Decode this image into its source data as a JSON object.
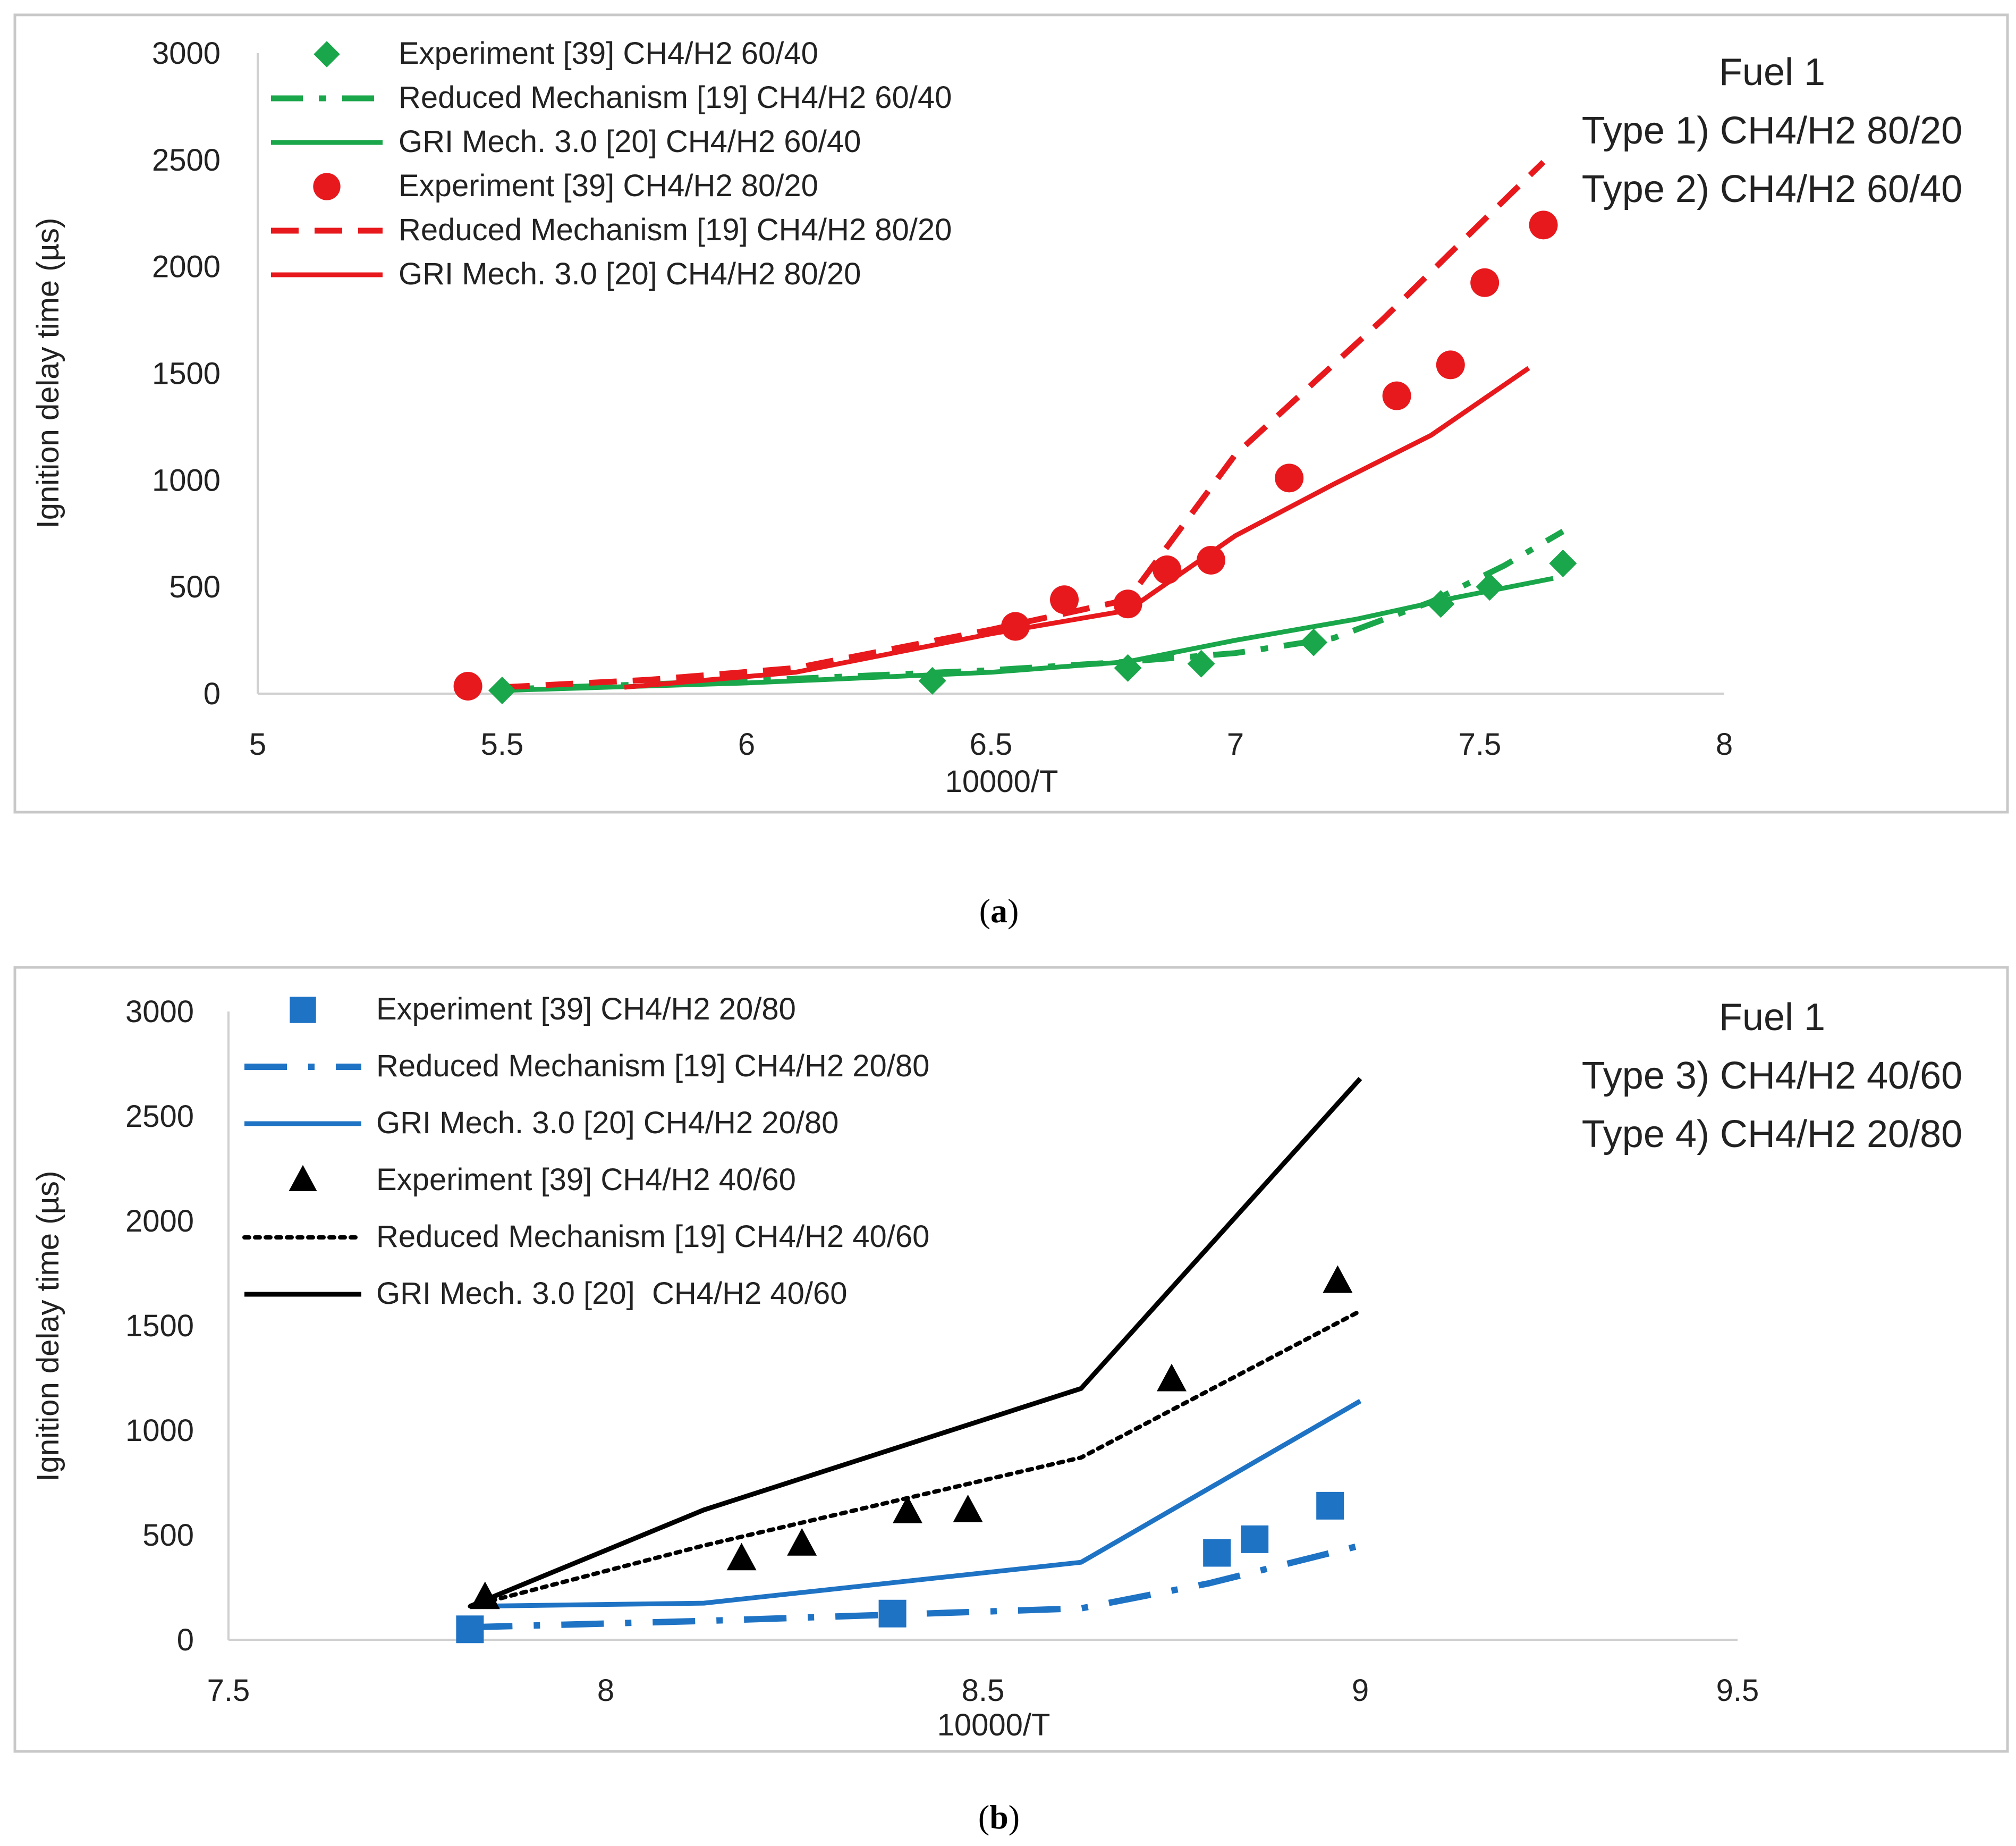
{
  "chart_data": [
    {
      "type": "scatter",
      "panel_label": "a",
      "xlabel": "10000/T",
      "ylabel": "Ignition delay time (µs)",
      "xlim": [
        5,
        8
      ],
      "ylim": [
        0,
        3000
      ],
      "xticks": [
        5,
        5.5,
        6,
        6.5,
        7,
        7.5,
        8
      ],
      "yticks": [
        0,
        500,
        1000,
        1500,
        2000,
        2500,
        3000
      ],
      "xtick_labels": [
        "5",
        "5.5",
        "6",
        "6.5",
        "7",
        "7.5",
        "8"
      ],
      "ytick_labels": [
        "0",
        "500",
        "1000",
        "1500",
        "2000",
        "2500",
        "3000"
      ],
      "annotation": [
        "Fuel 1",
        "Type 1) CH4/H2 80/20",
        "Type 2) CH4/H2 60/40"
      ],
      "legend_position": "top-left",
      "series": [
        {
          "name": "Experiment [39] CH4/H2 60/40",
          "kind": "markers",
          "marker": "diamond",
          "color": "#1aa64a",
          "x": [
            5.5,
            6.38,
            6.78,
            6.93,
            7.16,
            7.42,
            7.52,
            7.67
          ],
          "y": [
            15,
            60,
            120,
            140,
            240,
            420,
            500,
            610
          ]
        },
        {
          "name": "Reduced Mechanism [19] CH4/H2 60/40",
          "kind": "line",
          "dash": "dashdot",
          "color": "#1aa64a",
          "x": [
            5.5,
            6.0,
            6.5,
            6.78,
            7.0,
            7.2,
            7.4,
            7.55,
            7.67
          ],
          "y": [
            20,
            60,
            110,
            150,
            190,
            260,
            430,
            600,
            760
          ]
        },
        {
          "name": "GRI Mech. 3.0 [20] CH4/H2 60/40",
          "kind": "line",
          "dash": "solid",
          "color": "#1aa64a",
          "x": [
            5.5,
            6.0,
            6.5,
            6.78,
            7.0,
            7.25,
            7.45,
            7.65
          ],
          "y": [
            15,
            50,
            100,
            150,
            250,
            350,
            450,
            540
          ]
        },
        {
          "name": "Experiment [39] CH4/H2 80/20",
          "kind": "markers",
          "marker": "circle",
          "color": "#e8191d",
          "x": [
            5.43,
            6.55,
            6.65,
            6.78,
            6.86,
            6.95,
            7.11,
            7.33,
            7.44,
            7.51,
            7.63
          ],
          "y": [
            35,
            315,
            440,
            420,
            580,
            625,
            1010,
            1395,
            1540,
            1925,
            2195
          ]
        },
        {
          "name": "Reduced Mechanism [19] CH4/H2 80/20",
          "kind": "line",
          "dash": "dashed",
          "color": "#e8191d",
          "x": [
            5.5,
            5.8,
            6.1,
            6.5,
            6.78,
            7.0,
            7.3,
            7.5,
            7.63
          ],
          "y": [
            30,
            65,
            120,
            300,
            440,
            1120,
            1750,
            2200,
            2490
          ]
        },
        {
          "name": "GRI Mech. 3.0 [20] CH4/H2 80/20",
          "kind": "line",
          "dash": "solid",
          "color": "#e8191d",
          "x": [
            5.75,
            6.1,
            6.5,
            6.78,
            7.0,
            7.2,
            7.4,
            7.6
          ],
          "y": [
            30,
            100,
            280,
            390,
            740,
            980,
            1210,
            1525
          ]
        }
      ]
    },
    {
      "type": "scatter",
      "panel_label": "b",
      "xlabel": "10000/T",
      "ylabel": "Ignition delay time (µs)",
      "xlim": [
        7.5,
        9.5
      ],
      "ylim": [
        0,
        3000
      ],
      "xticks": [
        7.5,
        8,
        8.5,
        9,
        9.5
      ],
      "yticks": [
        0,
        500,
        1000,
        1500,
        2000,
        2500,
        3000
      ],
      "xtick_labels": [
        "7.5",
        "8",
        "8.5",
        "9",
        "9.5"
      ],
      "ytick_labels": [
        "0",
        "500",
        "1000",
        "1500",
        "2000",
        "2500",
        "3000"
      ],
      "annotation": [
        "Fuel 1",
        "Type 3) CH4/H2 40/60",
        "Type 4) CH4/H2 20/80"
      ],
      "legend_position": "top-left",
      "series": [
        {
          "name": "Experiment [39] CH4/H2 20/80",
          "kind": "markers",
          "marker": "square",
          "color": "#1f73c4",
          "x": [
            7.82,
            8.38,
            8.81,
            8.86,
            8.96
          ],
          "y": [
            50,
            125,
            415,
            480,
            640
          ]
        },
        {
          "name": "Reduced Mechanism [19] CH4/H2 20/80",
          "kind": "line",
          "dash": "longdashdot",
          "color": "#1f73c4",
          "x": [
            7.82,
            8.13,
            8.38,
            8.63,
            8.8,
            9.0
          ],
          "y": [
            60,
            90,
            120,
            150,
            270,
            450
          ]
        },
        {
          "name": "GRI Mech. 3.0 [20] CH4/H2 20/80",
          "kind": "line",
          "dash": "solid",
          "color": "#1f73c4",
          "x": [
            7.82,
            8.13,
            8.63,
            9.0
          ],
          "y": [
            160,
            175,
            370,
            1140
          ]
        },
        {
          "name": "Experiment [39] CH4/H2 40/60",
          "kind": "markers",
          "marker": "triangle",
          "color": "#000000",
          "x": [
            7.84,
            8.18,
            8.26,
            8.4,
            8.48,
            8.75,
            8.97
          ],
          "y": [
            200,
            385,
            455,
            610,
            615,
            1240,
            1710
          ]
        },
        {
          "name": "Reduced Mechanism [19] CH4/H2 40/60",
          "kind": "line",
          "dash": "dotted",
          "color": "#000000",
          "x": [
            7.82,
            8.13,
            8.63,
            9.0
          ],
          "y": [
            160,
            450,
            870,
            1570
          ]
        },
        {
          "name": "GRI Mech. 3.0 [20]  CH4/H2 40/60",
          "kind": "line",
          "dash": "solid",
          "color": "#000000",
          "x": [
            7.82,
            8.13,
            8.63,
            9.0
          ],
          "y": [
            160,
            620,
            1200,
            2680
          ]
        }
      ]
    }
  ],
  "captions": {
    "a": {
      "open": "(",
      "letter": "a",
      "close": ")"
    },
    "b": {
      "open": "(",
      "letter": "b",
      "close": ")"
    }
  }
}
